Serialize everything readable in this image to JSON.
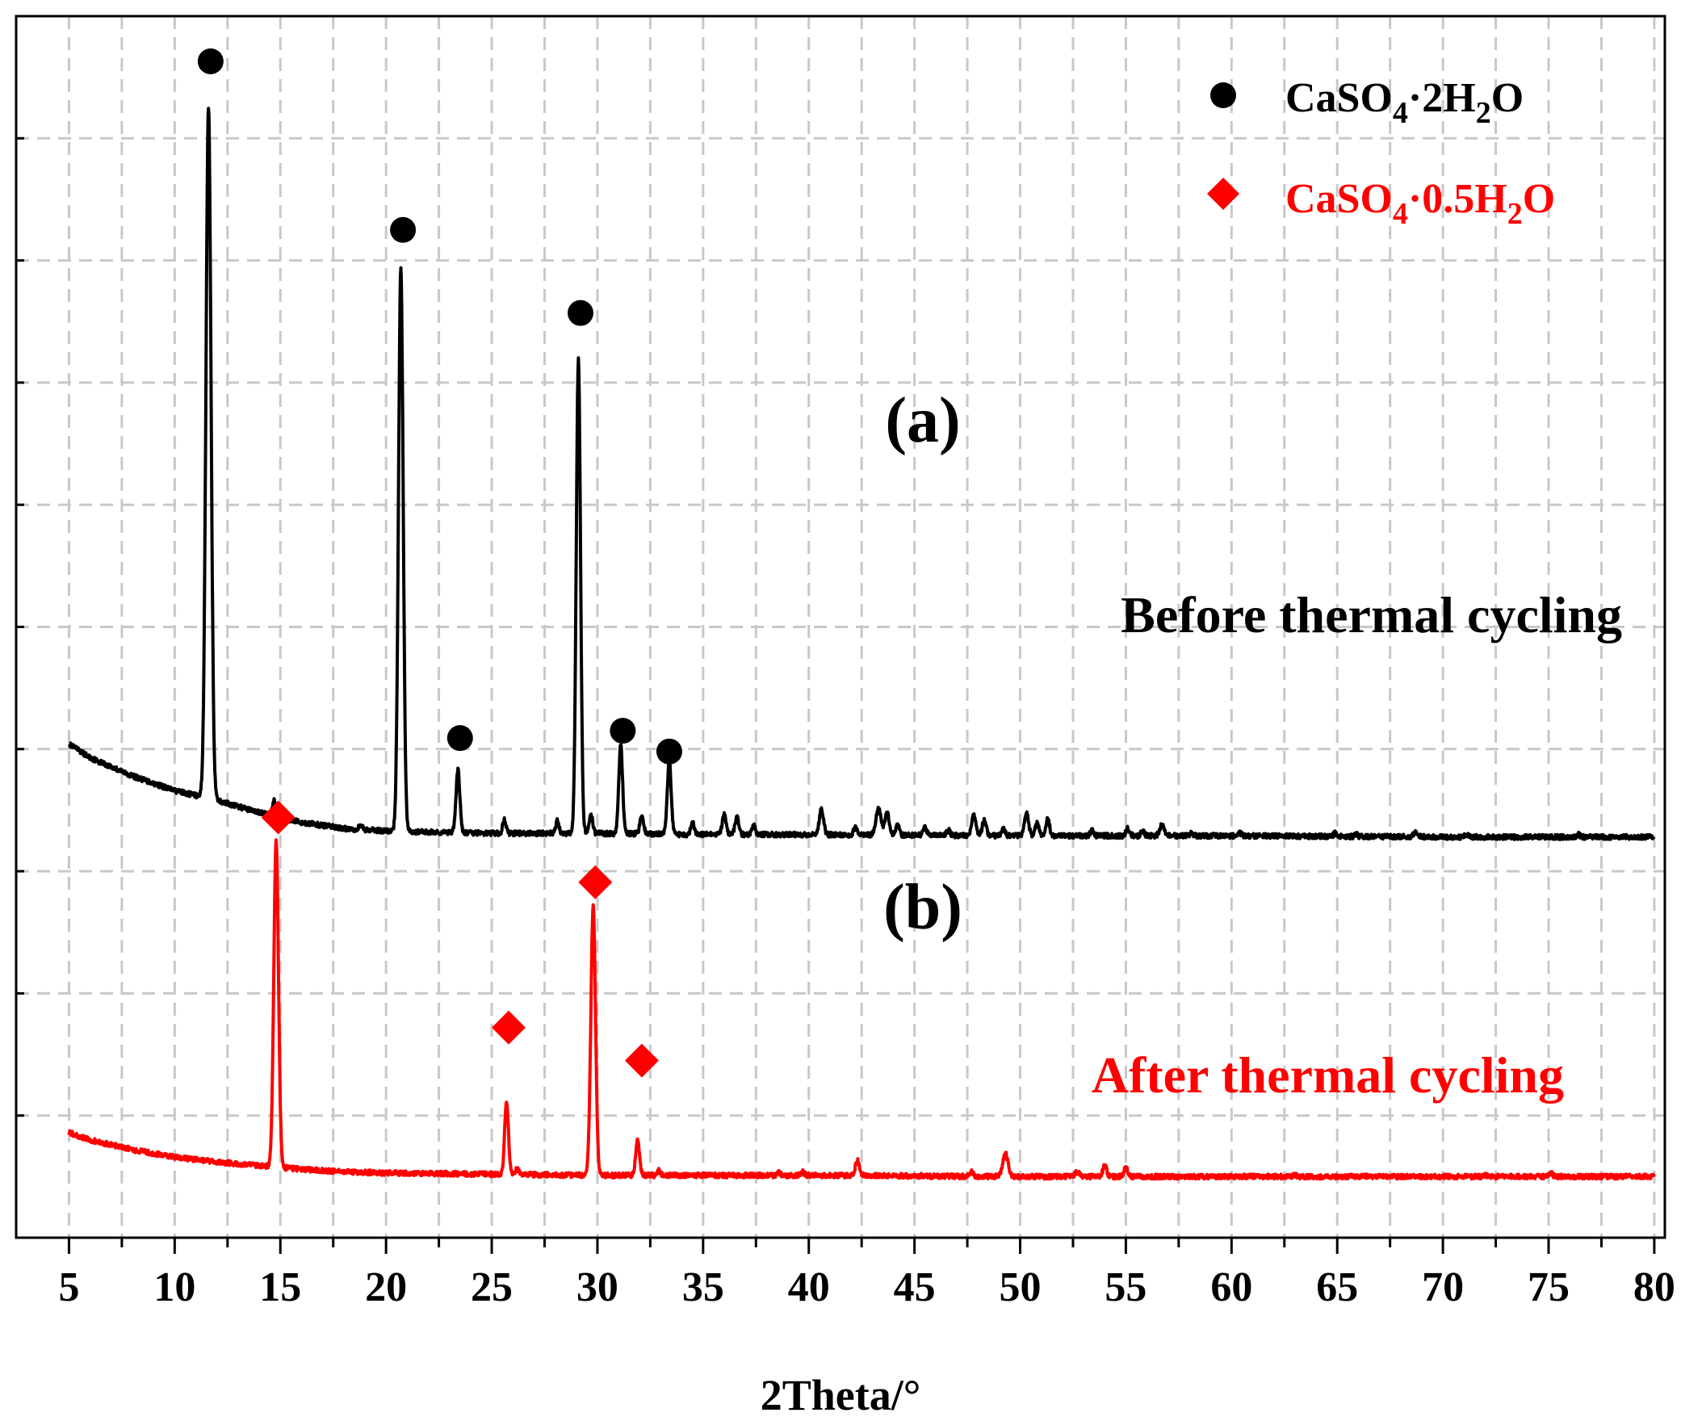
{
  "chart_data": {
    "type": "line",
    "title": "",
    "xlabel": "2Theta/°",
    "ylabel": "",
    "xlim": [
      2.5,
      80.5
    ],
    "ylim": [
      0,
      1000
    ],
    "xticks": [
      5,
      10,
      15,
      20,
      25,
      30,
      35,
      40,
      45,
      50,
      55,
      60,
      65,
      70,
      75,
      80
    ],
    "xticks_minor": [
      7.5,
      12.5,
      17.5,
      22.5,
      27.5,
      32.5,
      37.5,
      42.5,
      47.5,
      52.5,
      57.5,
      62.5,
      67.5,
      72.5,
      77.5
    ],
    "y_gridlines": [
      100,
      200,
      300,
      400,
      500,
      600,
      700,
      800,
      900
    ],
    "grid": true,
    "y_ticklabels_shown": false,
    "legend": {
      "placement": "top-right",
      "entries": [
        {
          "marker": "circle",
          "color": "#000000",
          "base": "CaSO",
          "sub1": "4",
          "mid": "·2H",
          "sub2": "2",
          "tail": "O"
        },
        {
          "marker": "diamond",
          "color": "#ff0000",
          "base": "CaSO",
          "sub1": "4",
          "mid": "·0.5H",
          "sub2": "2",
          "tail": "O"
        }
      ]
    },
    "series": [
      {
        "id": "a",
        "color": "#000000",
        "label": "Before thermal cycling",
        "panel_label": "(a)",
        "baseline": [
          [
            5,
            404
          ],
          [
            6,
            393
          ],
          [
            8,
            378
          ],
          [
            10,
            366
          ],
          [
            12,
            358
          ],
          [
            14,
            348
          ],
          [
            16,
            340
          ],
          [
            18,
            335
          ],
          [
            20,
            333
          ],
          [
            22,
            332
          ],
          [
            25,
            331
          ],
          [
            30,
            331
          ],
          [
            35,
            330
          ],
          [
            40,
            330
          ],
          [
            50,
            329
          ],
          [
            60,
            329
          ],
          [
            70,
            328
          ],
          [
            80,
            328
          ]
        ],
        "peaks": [
          {
            "x": 11.6,
            "y": 926,
            "w": 0.12
          },
          {
            "x": 14.7,
            "y": 358,
            "w": 0.08
          },
          {
            "x": 18.8,
            "y": 338,
            "w": 0.08
          },
          {
            "x": 20.7,
            "y": 793,
            "w": 0.11
          },
          {
            "x": 23.4,
            "y": 383,
            "w": 0.09
          },
          {
            "x": 25.6,
            "y": 342,
            "w": 0.08
          },
          {
            "x": 28.1,
            "y": 341,
            "w": 0.08
          },
          {
            "x": 29.1,
            "y": 720,
            "w": 0.1
          },
          {
            "x": 29.7,
            "y": 346,
            "w": 0.08
          },
          {
            "x": 31.1,
            "y": 403,
            "w": 0.09
          },
          {
            "x": 32.1,
            "y": 345,
            "w": 0.09
          },
          {
            "x": 33.4,
            "y": 390,
            "w": 0.09
          },
          {
            "x": 34.5,
            "y": 340,
            "w": 0.08
          },
          {
            "x": 36.0,
            "y": 347,
            "w": 0.09
          },
          {
            "x": 36.6,
            "y": 344,
            "w": 0.09
          },
          {
            "x": 37.4,
            "y": 337,
            "w": 0.08
          },
          {
            "x": 40.6,
            "y": 351,
            "w": 0.1
          },
          {
            "x": 42.2,
            "y": 336,
            "w": 0.08
          },
          {
            "x": 43.3,
            "y": 351,
            "w": 0.12
          },
          {
            "x": 43.7,
            "y": 348,
            "w": 0.1
          },
          {
            "x": 44.2,
            "y": 338,
            "w": 0.08
          },
          {
            "x": 45.5,
            "y": 336,
            "w": 0.08
          },
          {
            "x": 46.6,
            "y": 334,
            "w": 0.08
          },
          {
            "x": 47.8,
            "y": 346,
            "w": 0.1
          },
          {
            "x": 48.3,
            "y": 342,
            "w": 0.09
          },
          {
            "x": 49.2,
            "y": 336,
            "w": 0.08
          },
          {
            "x": 50.3,
            "y": 347,
            "w": 0.1
          },
          {
            "x": 50.8,
            "y": 340,
            "w": 0.09
          },
          {
            "x": 51.3,
            "y": 343,
            "w": 0.09
          },
          {
            "x": 53.4,
            "y": 333,
            "w": 0.08
          },
          {
            "x": 55.1,
            "y": 335,
            "w": 0.09
          },
          {
            "x": 55.8,
            "y": 333,
            "w": 0.08
          },
          {
            "x": 56.7,
            "y": 338,
            "w": 0.1
          },
          {
            "x": 58.1,
            "y": 331,
            "w": 0.08
          },
          {
            "x": 60.4,
            "y": 331,
            "w": 0.08
          },
          {
            "x": 64.9,
            "y": 331,
            "w": 0.08
          },
          {
            "x": 65.9,
            "y": 330,
            "w": 0.08
          },
          {
            "x": 68.7,
            "y": 332,
            "w": 0.1
          },
          {
            "x": 71.1,
            "y": 330,
            "w": 0.08
          },
          {
            "x": 76.4,
            "y": 330,
            "w": 0.08
          }
        ],
        "markers": [
          11.7,
          20.8,
          23.5,
          29.2,
          31.2,
          33.4
        ],
        "marker_y": [
          963,
          825,
          409,
          757,
          415,
          398
        ]
      },
      {
        "id": "b",
        "color": "#ff0000",
        "label": "After thermal cycling",
        "panel_label": "(b)",
        "baseline": [
          [
            5,
            86
          ],
          [
            6,
            80
          ],
          [
            8,
            72
          ],
          [
            10,
            66
          ],
          [
            12,
            62
          ],
          [
            14,
            59
          ],
          [
            16,
            56
          ],
          [
            18,
            54
          ],
          [
            20,
            53
          ],
          [
            25,
            52
          ],
          [
            30,
            51
          ],
          [
            40,
            51
          ],
          [
            50,
            50
          ],
          [
            60,
            50
          ],
          [
            70,
            50
          ],
          [
            80,
            50
          ]
        ],
        "peaks": [
          {
            "x": 14.8,
            "y": 324,
            "w": 0.11
          },
          {
            "x": 25.7,
            "y": 111,
            "w": 0.09
          },
          {
            "x": 26.2,
            "y": 56,
            "w": 0.08
          },
          {
            "x": 29.8,
            "y": 272,
            "w": 0.11
          },
          {
            "x": 31.9,
            "y": 81,
            "w": 0.09
          },
          {
            "x": 32.9,
            "y": 55,
            "w": 0.08
          },
          {
            "x": 38.6,
            "y": 53,
            "w": 0.08
          },
          {
            "x": 39.7,
            "y": 54,
            "w": 0.08
          },
          {
            "x": 42.3,
            "y": 63,
            "w": 0.1
          },
          {
            "x": 45.4,
            "y": 51,
            "w": 0.08
          },
          {
            "x": 47.7,
            "y": 54,
            "w": 0.09
          },
          {
            "x": 49.3,
            "y": 69,
            "w": 0.12
          },
          {
            "x": 52.7,
            "y": 54,
            "w": 0.09
          },
          {
            "x": 54.0,
            "y": 59,
            "w": 0.09
          },
          {
            "x": 55.0,
            "y": 57,
            "w": 0.09
          },
          {
            "x": 63.0,
            "y": 51,
            "w": 0.08
          },
          {
            "x": 72.0,
            "y": 51,
            "w": 0.08
          },
          {
            "x": 75.1,
            "y": 53,
            "w": 0.09
          }
        ],
        "markers": [
          14.9,
          25.8,
          29.9,
          32.1
        ],
        "marker_y": [
          344,
          172,
          291,
          145
        ]
      }
    ]
  }
}
